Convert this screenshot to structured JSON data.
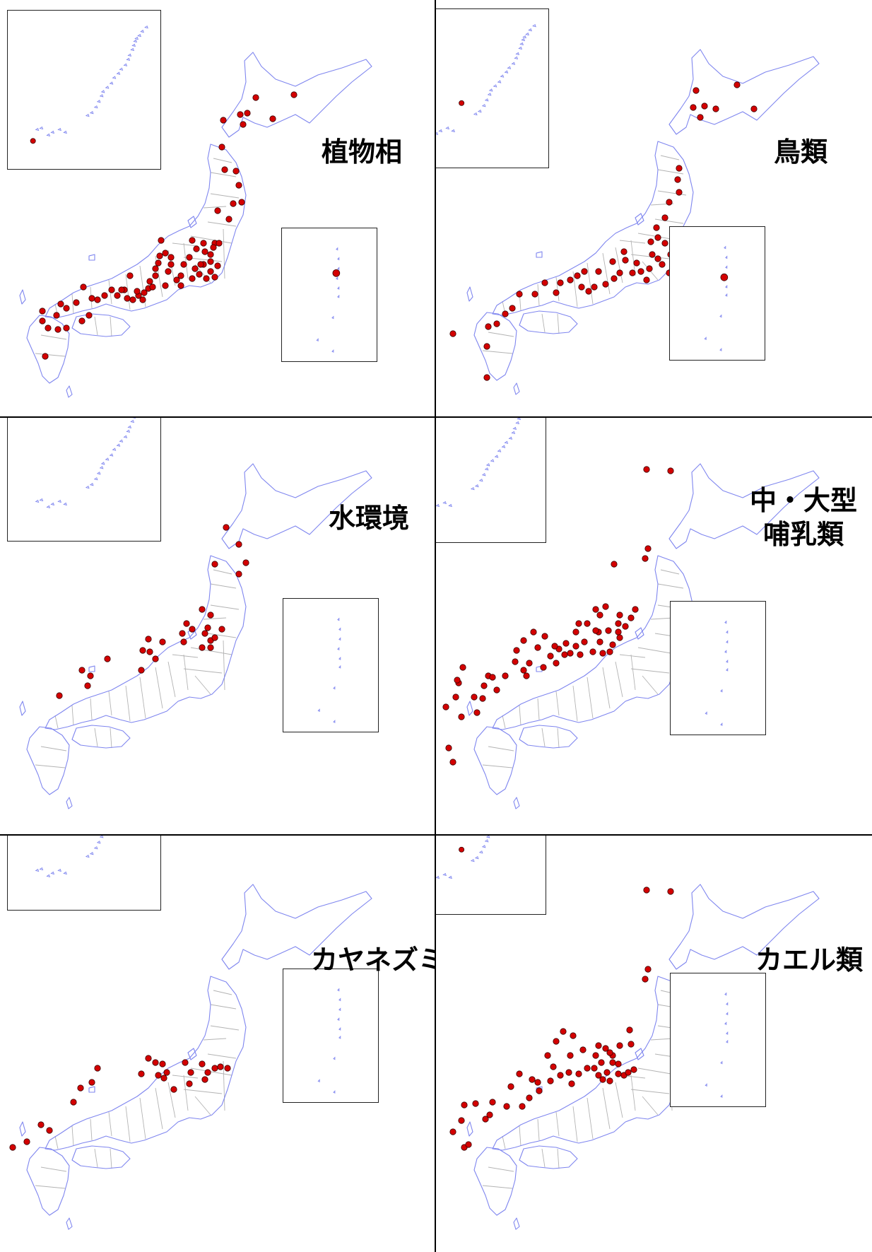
{
  "figure": {
    "panels": [
      {
        "label": [
          "植物相"
        ],
        "site_count": 115
      },
      {
        "label": [
          "鳥類"
        ],
        "site_count": 64
      },
      {
        "label": [
          "水環境"
        ],
        "site_count": 29
      },
      {
        "label": [
          "中・大型",
          "哺乳類"
        ],
        "site_count": 63
      },
      {
        "label": [
          "カヤネズミ"
        ],
        "site_count": 25
      },
      {
        "label": [
          "カエル類"
        ],
        "site_count": 59
      }
    ],
    "colors": {
      "coastline": "#7f86ef",
      "prefecture_border": "#b3b3b3",
      "site_marker": "#d40000",
      "site_marker_outline": "#3a0000",
      "divider": "#000000"
    },
    "icons": {
      "site_marker": "red-circle-marker"
    }
  }
}
